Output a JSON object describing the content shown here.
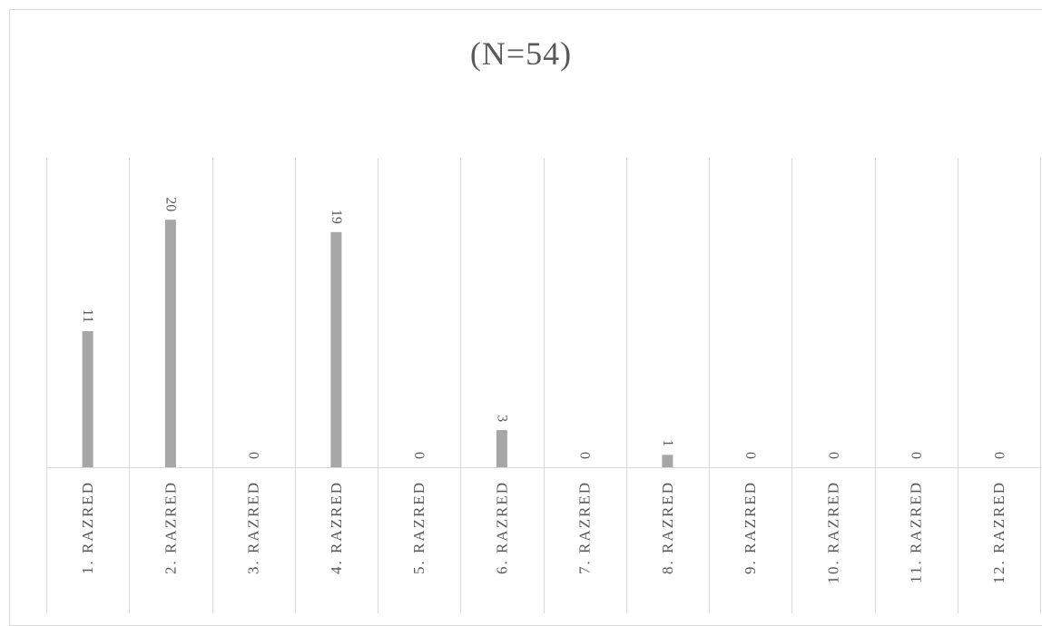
{
  "chart_data": {
    "type": "bar",
    "title": "(N=54)",
    "categories": [
      "1. RAZRED",
      "2. RAZRED",
      "3. RAZRED",
      "4. RAZRED",
      "5. RAZRED",
      "6. RAZRED",
      "7. RAZRED",
      "8. RAZRED",
      "9. RAZRED",
      "10. RAZRED",
      "11. RAZRED",
      "12. RAZRED"
    ],
    "values": [
      11,
      20,
      0,
      19,
      0,
      3,
      0,
      1,
      0,
      0,
      0,
      0
    ],
    "data_labels": [
      "11",
      "20",
      "0",
      "19",
      "0",
      "3",
      "0",
      "1",
      "0",
      "0",
      "0",
      "0"
    ],
    "ylim": [
      0,
      25
    ],
    "grid": "vertical",
    "bar_color": "#a6a6a6",
    "grid_color": "#d9d9d9",
    "text_color": "#595959"
  }
}
